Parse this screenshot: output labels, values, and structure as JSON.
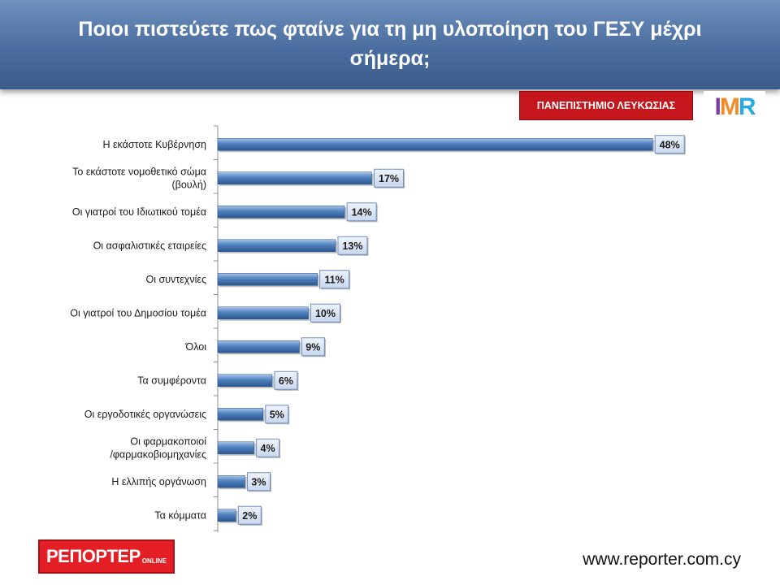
{
  "header": {
    "title_line1": "Ποιοι πιστεύετε πως φταίνε για τη μη υλοποίηση του ΓΕΣΥ μέχρι",
    "title_line2": "σήμερα;"
  },
  "university_badge": "ΠΑΝΕΠΙΣΤΗΜΙΟ ΛΕΥΚΩΣΙΑΣ",
  "imr_logo_text": "IMR",
  "reporter_logo": {
    "main": "ΡΕΠΟΡΤΕΡ",
    "sub": "ONLINE"
  },
  "website": "www.reporter.com.cy",
  "colors": {
    "bar": "#4f81bd",
    "header": "#4a6d9f",
    "badge": "#c4161c",
    "logo": "#e31e24"
  },
  "chart_data": {
    "type": "bar",
    "orientation": "horizontal",
    "title": "Ποιοι πιστεύετε πως φταίνε για τη μη υλοποίηση του ΓΕΣΥ μέχρι σήμερα;",
    "categories": [
      [
        "Η εκάστοτε Κυβέρνηση"
      ],
      [
        "Το εκάστοτε νομοθετικό σώμα",
        "(βουλή)"
      ],
      [
        "Οι γιατροί του Ιδιωτικού τομέα"
      ],
      [
        "Οι ασφαλιστικές εταιρείες"
      ],
      [
        "Οι συντεχνίες"
      ],
      [
        "Οι γιατροί του Δημοσίου τομέα"
      ],
      [
        "Όλοι"
      ],
      [
        "Τα συμφέροντα"
      ],
      [
        "Οι εργοδοτικές οργανώσεις"
      ],
      [
        "Οι φαρμακοποιοί",
        "/φαρμακοβιομηχανίες"
      ],
      [
        "Η ελλιπής οργάνωση"
      ],
      [
        "Τα κόμματα"
      ]
    ],
    "values": [
      48,
      17,
      14,
      13,
      11,
      10,
      9,
      6,
      5,
      4,
      3,
      2
    ],
    "value_labels": [
      "48%",
      "17%",
      "14%",
      "13%",
      "11%",
      "10%",
      "9%",
      "6%",
      "5%",
      "4%",
      "3%",
      "2%"
    ],
    "xlim": [
      0,
      55
    ],
    "grid": false,
    "legend": "none"
  }
}
